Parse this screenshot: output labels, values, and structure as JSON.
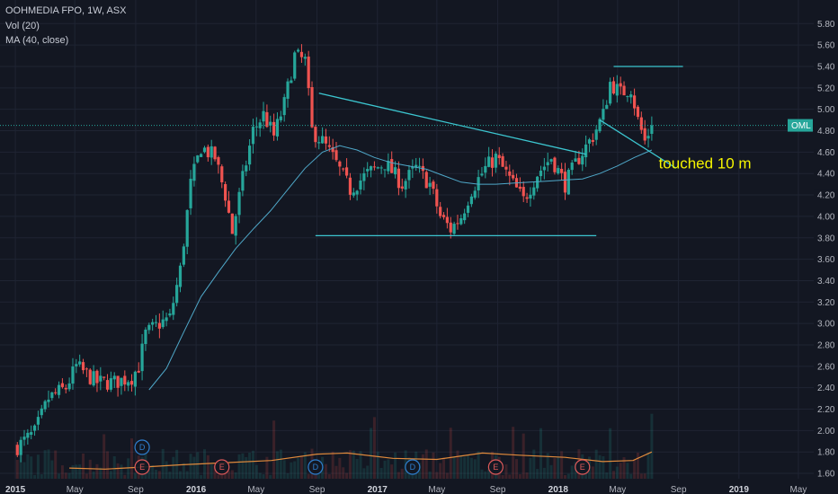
{
  "header": {
    "symbol_line": "OOHMEDIA FPO, 1W, ASX",
    "volume_line": "Vol (20)",
    "ma_line": "MA (40, close)"
  },
  "colors": {
    "background": "#131722",
    "grid": "#1f2433",
    "up": "#26a69a",
    "down": "#ef5350",
    "ma": "#4fa8c9",
    "volume_ma": "#e08a3c",
    "trendline": "#3cc6d0",
    "price_label_bg": "#26a69a",
    "annotation": "#f5f500"
  },
  "chart_data": {
    "type": "candlestick",
    "title": "OOHMEDIA FPO, 1W, ASX",
    "symbol": "OML",
    "last_price": 4.85,
    "last_price_label": "4.85",
    "ylim": [
      1.55,
      5.92
    ],
    "xlim": [
      "2014-12-01",
      "2019-06-01"
    ],
    "y_ticks": [
      "1.60",
      "1.80",
      "2.00",
      "2.20",
      "2.40",
      "2.60",
      "2.80",
      "3.00",
      "3.20",
      "3.40",
      "3.60",
      "3.80",
      "4.00",
      "4.20",
      "4.40",
      "4.60",
      "4.80",
      "5.00",
      "5.20",
      "5.40",
      "5.60",
      "5.80"
    ],
    "x_ticks": [
      {
        "label": "2015",
        "date": "2015-01-01",
        "major": true
      },
      {
        "label": "May",
        "date": "2015-05-01",
        "major": false
      },
      {
        "label": "Sep",
        "date": "2015-09-01",
        "major": false
      },
      {
        "label": "2016",
        "date": "2016-01-01",
        "major": true
      },
      {
        "label": "May",
        "date": "2016-05-01",
        "major": false
      },
      {
        "label": "Sep",
        "date": "2016-09-01",
        "major": false
      },
      {
        "label": "2017",
        "date": "2017-01-01",
        "major": true
      },
      {
        "label": "May",
        "date": "2017-05-01",
        "major": false
      },
      {
        "label": "Sep",
        "date": "2017-09-01",
        "major": false
      },
      {
        "label": "2018",
        "date": "2018-01-01",
        "major": true
      },
      {
        "label": "May",
        "date": "2018-05-01",
        "major": false
      },
      {
        "label": "Sep",
        "date": "2018-09-01",
        "major": false
      },
      {
        "label": "2019",
        "date": "2019-01-01",
        "major": true
      },
      {
        "label": "May",
        "date": "2019-05-01",
        "major": false
      }
    ],
    "key_prices": [
      [
        "2015-01-05",
        1.85
      ],
      [
        "2015-02-09",
        1.98
      ],
      [
        "2015-03-09",
        2.3
      ],
      [
        "2015-04-13",
        2.4
      ],
      [
        "2015-05-04",
        2.6
      ],
      [
        "2015-06-15",
        2.45
      ],
      [
        "2015-07-20",
        2.45
      ],
      [
        "2015-08-24",
        2.5
      ],
      [
        "2015-09-07",
        2.6
      ],
      [
        "2015-09-21",
        2.9
      ],
      [
        "2015-10-19",
        3.0
      ],
      [
        "2015-11-09",
        3.05
      ],
      [
        "2015-11-30",
        3.5
      ],
      [
        "2015-12-21",
        4.3
      ],
      [
        "2016-01-11",
        4.65
      ],
      [
        "2016-02-08",
        4.55
      ],
      [
        "2016-02-29",
        4.2
      ],
      [
        "2016-03-14",
        3.85
      ],
      [
        "2016-04-04",
        4.35
      ],
      [
        "2016-04-25",
        4.8
      ],
      [
        "2016-05-16",
        4.95
      ],
      [
        "2016-06-06",
        4.75
      ],
      [
        "2016-06-27",
        5.05
      ],
      [
        "2016-07-18",
        5.5
      ],
      [
        "2016-08-08",
        5.45
      ],
      [
        "2016-08-22",
        4.8
      ],
      [
        "2016-09-12",
        4.7
      ],
      [
        "2016-10-03",
        4.55
      ],
      [
        "2016-11-07",
        4.25
      ],
      [
        "2016-12-12",
        4.4
      ],
      [
        "2017-01-16",
        4.5
      ],
      [
        "2017-02-20",
        4.3
      ],
      [
        "2017-03-20",
        4.45
      ],
      [
        "2017-04-17",
        4.3
      ],
      [
        "2017-05-08",
        4.0
      ],
      [
        "2017-05-29",
        3.88
      ],
      [
        "2017-06-19",
        4.0
      ],
      [
        "2017-07-10",
        4.25
      ],
      [
        "2017-08-07",
        4.45
      ],
      [
        "2017-08-28",
        4.55
      ],
      [
        "2017-09-25",
        4.35
      ],
      [
        "2017-10-23",
        4.15
      ],
      [
        "2017-11-20",
        4.4
      ],
      [
        "2017-12-18",
        4.55
      ],
      [
        "2018-01-15",
        4.3
      ],
      [
        "2018-02-12",
        4.55
      ],
      [
        "2018-03-12",
        4.75
      ],
      [
        "2018-04-02",
        4.95
      ],
      [
        "2018-04-16",
        5.25
      ],
      [
        "2018-05-07",
        5.15
      ],
      [
        "2018-05-28",
        5.2
      ],
      [
        "2018-06-11",
        4.9
      ],
      [
        "2018-06-25",
        4.7
      ],
      [
        "2018-07-09",
        4.85
      ]
    ],
    "moving_average": {
      "name": "MA (40, close)",
      "points": [
        [
          "2015-09-28",
          2.38
        ],
        [
          "2015-11-02",
          2.58
        ],
        [
          "2015-12-07",
          2.92
        ],
        [
          "2016-01-11",
          3.25
        ],
        [
          "2016-02-15",
          3.48
        ],
        [
          "2016-03-21",
          3.7
        ],
        [
          "2016-04-25",
          3.88
        ],
        [
          "2016-05-30",
          4.05
        ],
        [
          "2016-07-04",
          4.25
        ],
        [
          "2016-08-08",
          4.45
        ],
        [
          "2016-09-12",
          4.6
        ],
        [
          "2016-10-17",
          4.66
        ],
        [
          "2016-11-21",
          4.62
        ],
        [
          "2016-12-26",
          4.55
        ],
        [
          "2017-01-30",
          4.5
        ],
        [
          "2017-03-06",
          4.47
        ],
        [
          "2017-04-10",
          4.44
        ],
        [
          "2017-05-15",
          4.38
        ],
        [
          "2017-06-19",
          4.32
        ],
        [
          "2017-07-24",
          4.3
        ],
        [
          "2017-08-28",
          4.3
        ],
        [
          "2017-10-02",
          4.31
        ],
        [
          "2017-11-06",
          4.32
        ],
        [
          "2017-12-11",
          4.33
        ],
        [
          "2018-01-15",
          4.34
        ],
        [
          "2018-02-19",
          4.35
        ],
        [
          "2018-03-26",
          4.4
        ],
        [
          "2018-04-30",
          4.47
        ],
        [
          "2018-06-04",
          4.55
        ],
        [
          "2018-07-09",
          4.62
        ]
      ]
    },
    "volume": {
      "name": "Vol (20)",
      "ma_points": [
        [
          "2015-04-20",
          1.65
        ],
        [
          "2015-07-01",
          1.64
        ],
        [
          "2015-09-20",
          1.66
        ],
        [
          "2015-12-01",
          1.68
        ],
        [
          "2016-03-01",
          1.7
        ],
        [
          "2016-06-01",
          1.72
        ],
        [
          "2016-09-01",
          1.78
        ],
        [
          "2016-11-01",
          1.79
        ],
        [
          "2017-02-01",
          1.74
        ],
        [
          "2017-05-01",
          1.73
        ],
        [
          "2017-08-01",
          1.79
        ],
        [
          "2017-10-15",
          1.77
        ],
        [
          "2018-01-15",
          1.75
        ],
        [
          "2018-04-01",
          1.71
        ],
        [
          "2018-06-01",
          1.72
        ],
        [
          "2018-07-09",
          1.8
        ]
      ]
    },
    "drawings": [
      {
        "from": [
          "2016-09-05",
          5.15
        ],
        "to": [
          "2018-02-26",
          4.58
        ]
      },
      {
        "from": [
          "2016-08-29",
          3.82
        ],
        "to": [
          "2018-03-19",
          3.82
        ]
      },
      {
        "from": [
          "2018-04-23",
          5.4
        ],
        "to": [
          "2018-09-10",
          5.4
        ]
      },
      {
        "from": [
          "2018-03-26",
          4.9
        ],
        "to": [
          "2018-08-27",
          4.45
        ]
      }
    ],
    "events": [
      {
        "label": "D",
        "kind": "dividend",
        "date": "2015-09-14",
        "row": "upper"
      },
      {
        "label": "E",
        "kind": "earnings",
        "date": "2015-09-14",
        "row": "lower"
      },
      {
        "label": "E",
        "kind": "earnings",
        "date": "2016-02-22",
        "row": "lower"
      },
      {
        "label": "D",
        "kind": "dividend",
        "date": "2016-08-29",
        "row": "lower"
      },
      {
        "label": "D",
        "kind": "dividend",
        "date": "2017-03-13",
        "row": "lower"
      },
      {
        "label": "E",
        "kind": "earnings",
        "date": "2017-08-28",
        "row": "lower"
      },
      {
        "label": "E",
        "kind": "earnings",
        "date": "2018-02-19",
        "row": "lower"
      }
    ],
    "annotations": [
      {
        "text": "touched 10 m",
        "at": [
          "2018-07-23",
          4.45
        ]
      }
    ]
  }
}
